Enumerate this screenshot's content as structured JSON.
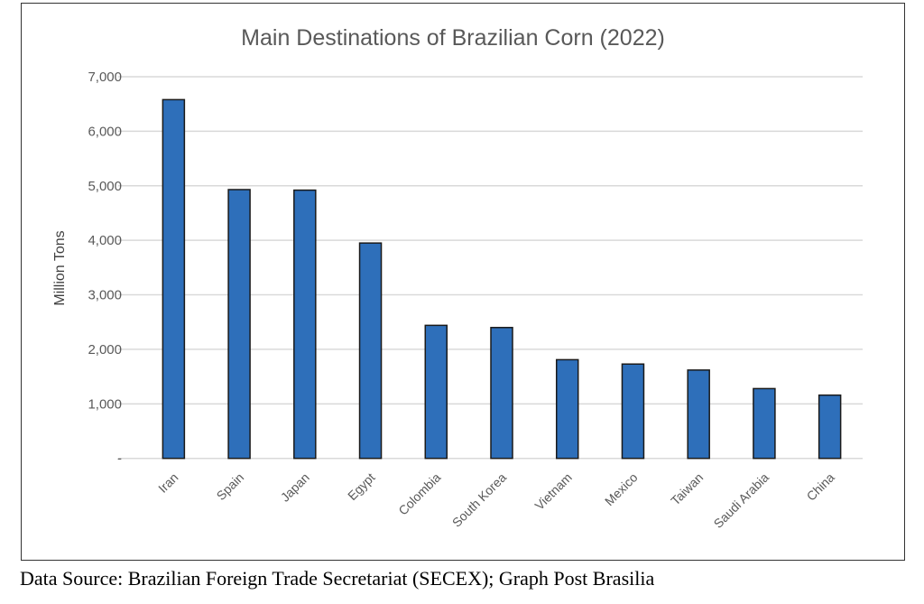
{
  "chart_data": {
    "type": "bar",
    "title": "Main Destinations of Brazilian Corn (2022)",
    "xlabel": "",
    "ylabel": "Million Tons",
    "categories": [
      "Iran",
      "Spain",
      "Japan",
      "Egypt",
      "Colombia",
      "South Korea",
      "Vietnam",
      "Mexico",
      "Taiwan",
      "Saudi Arabia",
      "China"
    ],
    "values": [
      6580,
      4930,
      4920,
      3950,
      2440,
      2400,
      1810,
      1730,
      1620,
      1280,
      1160
    ],
    "ylim": [
      0,
      7000
    ],
    "yticks": [
      0,
      1000,
      2000,
      3000,
      4000,
      5000,
      6000,
      7000
    ],
    "ytick_labels": [
      "-",
      "1,000",
      "2,000",
      "3,000",
      "4,000",
      "5,000",
      "6,000",
      "7,000"
    ],
    "grid": true,
    "bar_color": "#2E6FBA",
    "bar_edge_color": "#1a1a1a",
    "legend": "none"
  },
  "caption": "Data Source: Brazilian Foreign Trade Secretariat (SECEX); Graph Post Brasilia"
}
